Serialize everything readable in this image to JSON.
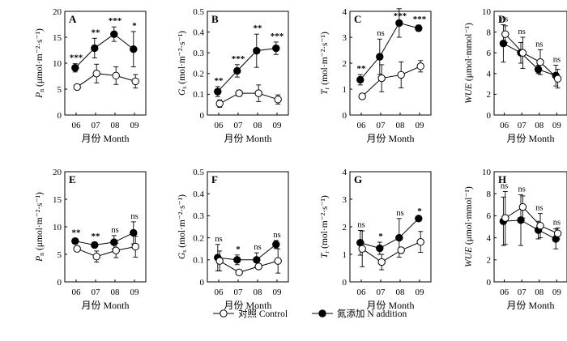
{
  "legend": {
    "control_label": "对照 Control",
    "n_label": "氮添加 N addition"
  },
  "chart_data": [
    {
      "id": "A",
      "type": "line",
      "letter": "A",
      "ylabel_main": "P",
      "ylabel_sub": "n",
      "ylabel_unit": " (μmol·m⁻²·s⁻¹)",
      "xlabel": "月份 Month",
      "categories": [
        "06",
        "07",
        "08",
        "09"
      ],
      "ylim": [
        0,
        20
      ],
      "yticks": [
        0,
        5,
        10,
        15,
        20
      ],
      "ytick_labels": [
        "0",
        "5",
        "10",
        "15",
        "20"
      ],
      "series": [
        {
          "name": "对照 Control",
          "style": "open",
          "values": [
            5.4,
            8.0,
            7.6,
            6.5
          ],
          "errors": [
            0.5,
            1.8,
            1.7,
            1.3
          ]
        },
        {
          "name": "氮添加 N addition",
          "style": "filled",
          "values": [
            9.1,
            12.9,
            15.6,
            12.7
          ],
          "errors": [
            0.8,
            1.9,
            1.4,
            3.4
          ]
        }
      ],
      "annotations": [
        "***",
        "**",
        "***",
        "*"
      ]
    },
    {
      "id": "B",
      "type": "line",
      "letter": "B",
      "ylabel_main": "G",
      "ylabel_sub": "s",
      "ylabel_unit": " (mol·m⁻²·s⁻¹)",
      "xlabel": "月份 Month",
      "categories": [
        "06",
        "07",
        "08",
        "09"
      ],
      "ylim": [
        0,
        0.5
      ],
      "yticks": [
        0,
        0.1,
        0.2,
        0.3,
        0.4,
        0.5
      ],
      "ytick_labels": [
        "0",
        "0.1",
        "0.2",
        "0.3",
        "0.4",
        "0.5"
      ],
      "series": [
        {
          "name": "对照 Control",
          "style": "open",
          "values": [
            0.055,
            0.105,
            0.105,
            0.075
          ],
          "errors": [
            0.018,
            0.015,
            0.04,
            0.022
          ]
        },
        {
          "name": "氮添加 N addition",
          "style": "filled",
          "values": [
            0.113,
            0.213,
            0.31,
            0.322
          ],
          "errors": [
            0.024,
            0.03,
            0.08,
            0.03
          ]
        }
      ],
      "annotations": [
        "**",
        "***",
        "**",
        "***"
      ]
    },
    {
      "id": "C",
      "type": "line",
      "letter": "C",
      "ylabel_main": "T",
      "ylabel_sub": "r",
      "ylabel_unit": " (mol·m⁻²·s⁻¹)",
      "xlabel": "月份 Month",
      "categories": [
        "06",
        "07",
        "08",
        "09"
      ],
      "ylim": [
        0,
        4
      ],
      "yticks": [
        0,
        1,
        2,
        3,
        4
      ],
      "ytick_labels": [
        "0",
        "1",
        "2",
        "3",
        "4"
      ],
      "series": [
        {
          "name": "对照 Control",
          "style": "open",
          "values": [
            0.72,
            1.42,
            1.55,
            1.88
          ],
          "errors": [
            0.1,
            0.52,
            0.5,
            0.22
          ]
        },
        {
          "name": "氮添加 N addition",
          "style": "filled",
          "values": [
            1.36,
            2.25,
            3.55,
            3.35
          ],
          "errors": [
            0.2,
            0.68,
            0.55,
            0.12
          ]
        }
      ],
      "annotations": [
        "**",
        "ns",
        "***",
        "***"
      ]
    },
    {
      "id": "D",
      "type": "line",
      "letter": "D",
      "ylabel_main": "WUE",
      "ylabel_sub": "",
      "ylabel_unit": " (μmol·mmol⁻¹)",
      "xlabel": "月份 Month",
      "categories": [
        "06",
        "07",
        "08",
        "09"
      ],
      "ylim": [
        0,
        10
      ],
      "yticks": [
        0,
        2,
        4,
        6,
        8,
        10
      ],
      "ytick_labels": [
        "0",
        "2",
        "4",
        "6",
        "8",
        "10"
      ],
      "series": [
        {
          "name": "对照 Control",
          "style": "open",
          "values": [
            7.8,
            6.0,
            5.1,
            3.5
          ],
          "errors": [
            0.8,
            1.5,
            1.2,
            0.9
          ]
        },
        {
          "name": "氮添加 N addition",
          "style": "filled",
          "values": [
            6.9,
            6.0,
            4.4,
            3.8
          ],
          "errors": [
            1.8,
            1.0,
            0.4,
            1.0
          ]
        }
      ],
      "annotations": [
        "ns",
        "ns",
        "ns",
        "ns"
      ]
    },
    {
      "id": "E",
      "type": "line",
      "letter": "E",
      "ylabel_main": "P",
      "ylabel_sub": "n",
      "ylabel_unit": " (μmol·m⁻²·s⁻¹)",
      "xlabel": "",
      "categories": [
        "06",
        "07",
        "08",
        "09"
      ],
      "ylim": [
        0,
        20
      ],
      "yticks": [
        0,
        5,
        10,
        15,
        20
      ],
      "ytick_labels": [
        "0",
        "5",
        "10",
        "15",
        "20"
      ],
      "series": [
        {
          "name": "对照 Control",
          "style": "open",
          "values": [
            6.0,
            4.6,
            5.7,
            6.4
          ],
          "errors": [
            0.5,
            1.0,
            1.3,
            1.9
          ]
        },
        {
          "name": "氮添加 N addition",
          "style": "filled",
          "values": [
            7.4,
            6.7,
            7.2,
            8.9
          ],
          "errors": [
            0.5,
            0.5,
            1.2,
            2.0
          ]
        }
      ],
      "annotations": [
        "**",
        "**",
        "ns",
        "ns"
      ]
    },
    {
      "id": "F",
      "type": "line",
      "letter": "F",
      "ylabel_main": "G",
      "ylabel_sub": "s",
      "ylabel_unit": " (mol·m⁻²·s⁻¹)",
      "xlabel": "",
      "categories": [
        "06",
        "07",
        "08",
        "09"
      ],
      "ylim": [
        0,
        0.5
      ],
      "yticks": [
        0,
        0.1,
        0.2,
        0.3,
        0.4,
        0.5
      ],
      "ytick_labels": [
        "0",
        "0.1",
        "0.2",
        "0.3",
        "0.4",
        "0.5"
      ],
      "series": [
        {
          "name": "对照 Control",
          "style": "open",
          "values": [
            0.095,
            0.043,
            0.07,
            0.095
          ],
          "errors": [
            0.045,
            0.012,
            0.012,
            0.055
          ]
        },
        {
          "name": "氮添加 N addition",
          "style": "filled",
          "values": [
            0.11,
            0.1,
            0.1,
            0.17
          ],
          "errors": [
            0.06,
            0.022,
            0.032,
            0.018
          ]
        }
      ],
      "annotations": [
        "ns",
        "*",
        "ns",
        "ns"
      ]
    },
    {
      "id": "G",
      "type": "line",
      "letter": "G",
      "ylabel_main": "T",
      "ylabel_sub": "r",
      "ylabel_unit": " (mol·m⁻²·s⁻¹)",
      "xlabel": "",
      "categories": [
        "06",
        "07",
        "08",
        "09"
      ],
      "ylim": [
        0,
        4
      ],
      "yticks": [
        0,
        1,
        2,
        3,
        4
      ],
      "ytick_labels": [
        "0",
        "1",
        "2",
        "3",
        "4"
      ],
      "series": [
        {
          "name": "对照 Control",
          "style": "open",
          "values": [
            1.2,
            0.72,
            1.15,
            1.45
          ],
          "errors": [
            0.65,
            0.28,
            0.1,
            0.38
          ]
        },
        {
          "name": "氮添加 N addition",
          "style": "filled",
          "values": [
            1.42,
            1.22,
            1.6,
            2.3
          ],
          "errors": [
            0.45,
            0.22,
            0.7,
            0.05
          ]
        }
      ],
      "annotations": [
        "ns",
        "*",
        "ns",
        "*"
      ]
    },
    {
      "id": "H",
      "type": "line",
      "letter": "H",
      "ylabel_main": "WUE",
      "ylabel_sub": "",
      "ylabel_unit": " (μmol·mmol⁻¹)",
      "xlabel": "",
      "categories": [
        "06",
        "07",
        "08",
        "09"
      ],
      "ylim": [
        0,
        10
      ],
      "yticks": [
        0,
        2,
        4,
        6,
        8,
        10
      ],
      "ytick_labels": [
        "0",
        "2",
        "4",
        "6",
        "8",
        "10"
      ],
      "series": [
        {
          "name": "对照 Control",
          "style": "open",
          "values": [
            5.8,
            6.8,
            5.1,
            4.4
          ],
          "errors": [
            2.4,
            1.0,
            1.1,
            0.5
          ]
        },
        {
          "name": "氮添加 N addition",
          "style": "filled",
          "values": [
            5.5,
            5.6,
            4.7,
            3.9
          ],
          "errors": [
            2.2,
            2.3,
            0.8,
            0.9
          ]
        }
      ],
      "annotations": [
        "ns",
        "ns",
        "ns",
        "ns"
      ]
    }
  ],
  "bottom_xlabels": [
    "月份 Month",
    "月份 Month",
    "月份 Month",
    "月份 Month"
  ]
}
